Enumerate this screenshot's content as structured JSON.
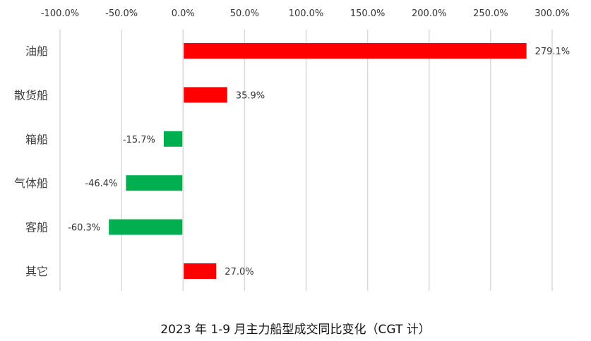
{
  "chart_data": {
    "type": "bar",
    "orientation": "horizontal",
    "title": "2023 年 1-9 月主力船型成交同比变化（CGT 计）",
    "categories": [
      "油船",
      "散货船",
      "箱船",
      "气体船",
      "客船",
      "其它"
    ],
    "values": [
      279.1,
      35.9,
      -15.7,
      -46.4,
      -60.3,
      27.0
    ],
    "data_labels": [
      "279.1%",
      "35.9%",
      "-15.7%",
      "-46.4%",
      "-60.3%",
      "27.0%"
    ],
    "x_ticks": [
      -100,
      -50,
      0,
      50,
      100,
      150,
      200,
      250,
      300
    ],
    "x_tick_labels": [
      "-100.0%",
      "-50.0%",
      "0.0%",
      "50.0%",
      "100.0%",
      "150.0%",
      "200.0%",
      "250.0%",
      "300.0%"
    ],
    "xlim": [
      -100,
      300
    ],
    "x_axis_position": "top",
    "grid": true,
    "legend": "none",
    "colors": {
      "positive": "#ff0000",
      "negative": "#00b050"
    }
  }
}
